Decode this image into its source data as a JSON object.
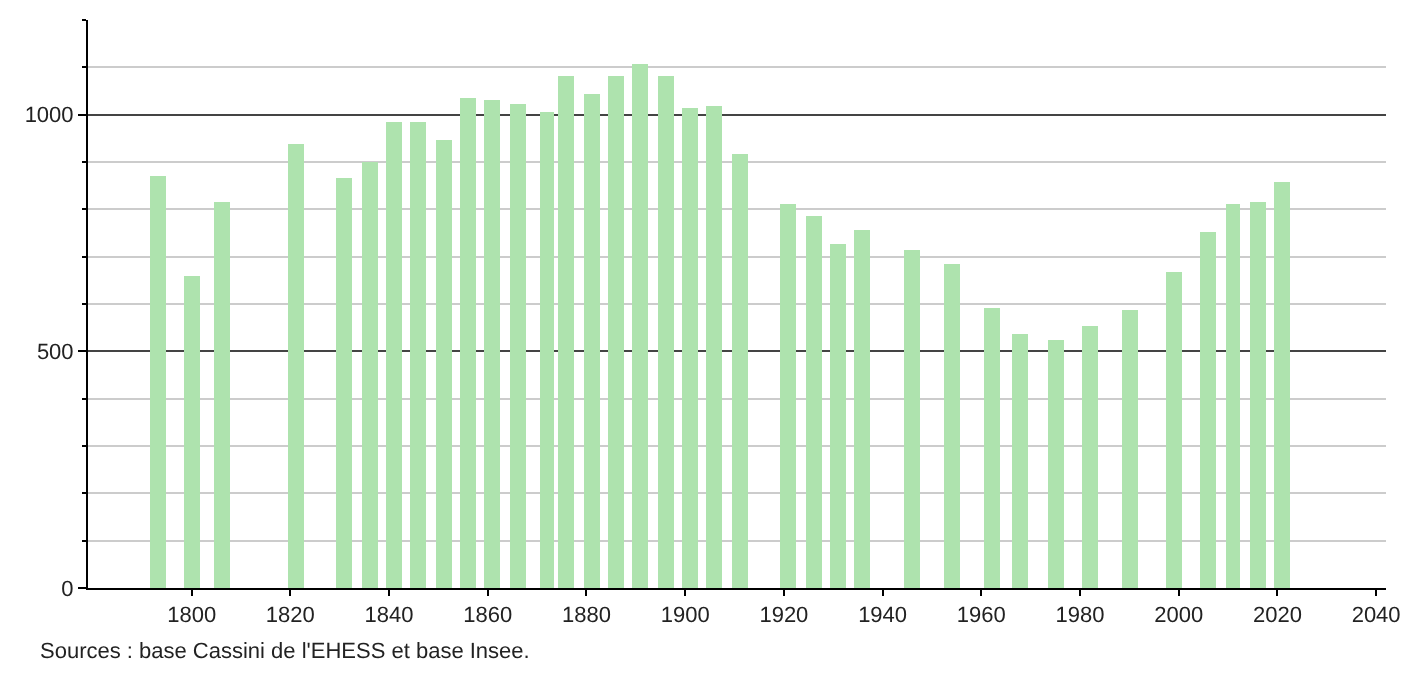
{
  "chart_data": {
    "type": "bar",
    "x": [
      1793,
      1800,
      1806,
      1821,
      1831,
      1836,
      1841,
      1846,
      1851,
      1856,
      1861,
      1866,
      1872,
      1876,
      1881,
      1886,
      1891,
      1896,
      1901,
      1906,
      1911,
      1921,
      1926,
      1931,
      1936,
      1946,
      1954,
      1962,
      1968,
      1975,
      1982,
      1990,
      1999,
      2006,
      2011,
      2016,
      2021
    ],
    "values": [
      872,
      661,
      817,
      939,
      866,
      900,
      985,
      985,
      945,
      1035,
      1033,
      1022,
      1004,
      1080,
      1043,
      1083,
      1109,
      1080,
      1014,
      1017,
      917,
      813,
      784,
      726,
      756,
      716,
      683,
      590,
      535,
      522,
      553,
      586,
      666,
      752,
      813,
      817,
      859
    ],
    "color": "#aee3ae",
    "xlim": [
      1779,
      2042
    ],
    "xticks": [
      1800,
      1820,
      1840,
      1860,
      1880,
      1900,
      1920,
      1940,
      1960,
      1980,
      2000,
      2020,
      2040
    ],
    "ylim": [
      0,
      1200
    ],
    "yticks": [
      0,
      {
        "value": 100,
        "label": null
      },
      {
        "value": 200,
        "label": null
      },
      {
        "value": 300,
        "label": null
      },
      {
        "value": 400,
        "label": null
      },
      500,
      {
        "value": 600,
        "label": null
      },
      {
        "value": 700,
        "label": null
      },
      {
        "value": 800,
        "label": null
      },
      {
        "value": 900,
        "label": null
      },
      1000,
      {
        "value": 1100,
        "label": null
      },
      {
        "value": 1200,
        "label": null
      }
    ],
    "grid": "y",
    "annotations": [
      "Sources : base Cassini de l'EHESS et base Insee."
    ]
  }
}
